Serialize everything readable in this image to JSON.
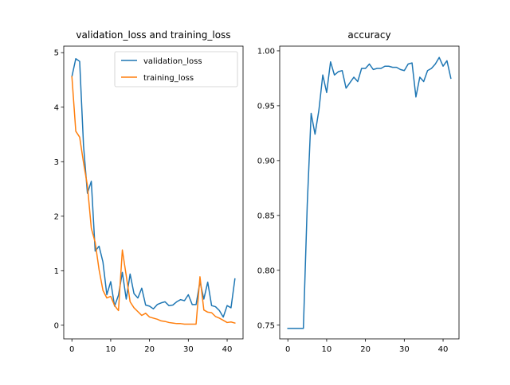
{
  "chart_data": [
    {
      "type": "line",
      "title": "validation_loss and training_loss",
      "xlabel": "",
      "ylabel": "",
      "xlim": [
        -2.1,
        44.1
      ],
      "ylim": [
        -0.25,
        5.12
      ],
      "xticks": [
        0,
        10,
        20,
        30,
        40
      ],
      "yticks": [
        0,
        1,
        2,
        3,
        4,
        5
      ],
      "legend": "top-right",
      "series": [
        {
          "name": "validation_loss",
          "color": "#1f77b4",
          "x": [
            0,
            1,
            2,
            3,
            4,
            5,
            6,
            7,
            8,
            9,
            10,
            11,
            12,
            13,
            14,
            15,
            16,
            17,
            18,
            19,
            20,
            21,
            22,
            23,
            24,
            25,
            26,
            27,
            28,
            29,
            30,
            31,
            32,
            33,
            34,
            35,
            36,
            37,
            38,
            39,
            40,
            41,
            42
          ],
          "values": [
            4.56,
            4.89,
            4.84,
            3.29,
            2.42,
            2.64,
            1.36,
            1.45,
            1.16,
            0.56,
            0.8,
            0.35,
            0.55,
            0.97,
            0.48,
            0.94,
            0.58,
            0.5,
            0.68,
            0.37,
            0.35,
            0.3,
            0.38,
            0.41,
            0.43,
            0.36,
            0.37,
            0.43,
            0.47,
            0.45,
            0.56,
            0.38,
            0.38,
            0.8,
            0.48,
            0.79,
            0.36,
            0.34,
            0.27,
            0.15,
            0.36,
            0.32,
            0.85
          ]
        },
        {
          "name": "training_loss",
          "color": "#ff7f0e",
          "x": [
            0,
            1,
            2,
            3,
            4,
            5,
            6,
            7,
            8,
            9,
            10,
            11,
            12,
            13,
            14,
            15,
            16,
            17,
            18,
            19,
            20,
            21,
            22,
            23,
            24,
            25,
            26,
            27,
            28,
            29,
            30,
            31,
            32,
            33,
            34,
            35,
            36,
            37,
            38,
            39,
            40,
            41,
            42
          ],
          "values": [
            4.56,
            3.56,
            3.45,
            2.98,
            2.56,
            1.78,
            1.52,
            1.02,
            0.64,
            0.5,
            0.53,
            0.36,
            0.27,
            1.38,
            0.91,
            0.43,
            0.32,
            0.25,
            0.18,
            0.22,
            0.15,
            0.13,
            0.11,
            0.08,
            0.07,
            0.05,
            0.04,
            0.03,
            0.03,
            0.02,
            0.02,
            0.02,
            0.02,
            0.89,
            0.28,
            0.24,
            0.23,
            0.16,
            0.13,
            0.09,
            0.05,
            0.06,
            0.04
          ]
        }
      ]
    },
    {
      "type": "line",
      "title": "accuracy",
      "xlabel": "",
      "ylabel": "",
      "xlim": [
        -2.1,
        44.1
      ],
      "ylim": [
        0.7375,
        1.0043
      ],
      "xticks": [
        0,
        10,
        20,
        30,
        40
      ],
      "yticks": [
        0.75,
        0.8,
        0.85,
        0.9,
        0.95,
        1.0
      ],
      "ytick_labels": [
        "0.75",
        "0.80",
        "0.85",
        "0.90",
        "0.95",
        "1.00"
      ],
      "series": [
        {
          "color": "#1f77b4",
          "x": [
            0,
            1,
            2,
            3,
            4,
            5,
            6,
            7,
            8,
            9,
            10,
            11,
            12,
            13,
            14,
            15,
            16,
            17,
            18,
            19,
            20,
            21,
            22,
            23,
            24,
            25,
            26,
            27,
            28,
            29,
            30,
            31,
            32,
            33,
            34,
            35,
            36,
            37,
            38,
            39,
            40,
            41,
            42
          ],
          "values": [
            0.747,
            0.747,
            0.747,
            0.747,
            0.747,
            0.86,
            0.943,
            0.924,
            0.946,
            0.978,
            0.962,
            0.99,
            0.978,
            0.981,
            0.982,
            0.966,
            0.971,
            0.976,
            0.972,
            0.984,
            0.984,
            0.988,
            0.983,
            0.984,
            0.984,
            0.986,
            0.986,
            0.985,
            0.985,
            0.983,
            0.982,
            0.988,
            0.989,
            0.958,
            0.976,
            0.972,
            0.982,
            0.984,
            0.988,
            0.994,
            0.986,
            0.991,
            0.975
          ]
        }
      ]
    }
  ]
}
